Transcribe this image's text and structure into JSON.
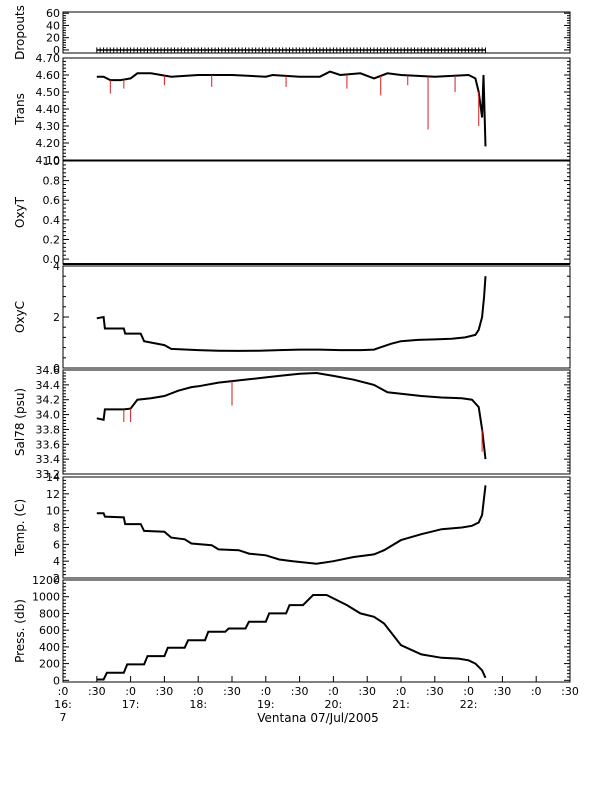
{
  "chart_data": {
    "type": "line",
    "title": "",
    "x_axis": {
      "tick_labels": [
        ":0",
        ":30",
        ":0",
        ":30",
        ":0",
        ":30",
        ":0",
        ":30",
        ":0",
        ":30",
        ":0",
        ":30",
        ":0",
        ":30",
        ":0",
        ":30"
      ],
      "hour_labels": [
        "16:",
        "17:",
        "18:",
        "19:",
        "20:",
        "21:",
        "22:"
      ],
      "day_label": "7",
      "xlabel": "Ventana 07/Jul/2005",
      "range_hours": [
        16.0,
        23.5
      ]
    },
    "panels": [
      {
        "ylabel": "Dropouts",
        "ylim": [
          -5,
          62
        ],
        "ticks": [
          0,
          20,
          40,
          60
        ],
        "tick_labels": [
          "0",
          "20",
          "40",
          "60"
        ],
        "series": [
          {
            "x": [
              16.5,
              22.25
            ],
            "y": [
              0,
              0
            ],
            "style": "plus-markers"
          }
        ]
      },
      {
        "ylabel": "Trans",
        "ylim": [
          4.1,
          4.7
        ],
        "ticks": [
          4.1,
          4.2,
          4.3,
          4.4,
          4.5,
          4.6,
          4.7
        ],
        "tick_labels": [
          "4.10",
          "4.20",
          "4.30",
          "4.40",
          "4.50",
          "4.60",
          "4.70"
        ],
        "series": [
          {
            "x": [
              16.5,
              16.6,
              16.7,
              16.85,
              17.0,
              17.1,
              17.3,
              17.6,
              18.0,
              18.5,
              19.0,
              19.1,
              19.5,
              19.8,
              19.95,
              20.1,
              20.4,
              20.6,
              20.8,
              21.0,
              21.5,
              22.0,
              22.1,
              22.15,
              22.2,
              22.22,
              22.25
            ],
            "y": [
              4.59,
              4.59,
              4.57,
              4.57,
              4.58,
              4.61,
              4.61,
              4.59,
              4.6,
              4.6,
              4.59,
              4.6,
              4.59,
              4.59,
              4.62,
              4.6,
              4.61,
              4.58,
              4.61,
              4.6,
              4.59,
              4.6,
              4.58,
              4.5,
              4.35,
              4.6,
              4.18
            ]
          },
          {
            "x": [
              16.7,
              16.9,
              17.5,
              18.2,
              19.3,
              20.2,
              20.7,
              21.1,
              21.4,
              21.8,
              22.15
            ],
            "y": [
              4.49,
              4.52,
              4.54,
              4.53,
              4.53,
              4.52,
              4.48,
              4.54,
              4.28,
              4.5,
              4.3
            ],
            "style": "red-spikes"
          }
        ]
      },
      {
        "ylabel": "OxyT",
        "ylim": [
          -0.05,
          1.0
        ],
        "ticks": [
          0.0,
          0.2,
          0.4,
          0.6,
          0.8,
          1.0
        ],
        "tick_labels": [
          "0.0",
          "0.2",
          "0.4",
          "0.6",
          "0.8",
          "1.0"
        ],
        "series": [
          {
            "x": [
              16.0,
              23.5
            ],
            "y": [
              -0.05,
              -0.05
            ]
          }
        ]
      },
      {
        "ylabel": "OxyC",
        "ylim": [
          0,
          4
        ],
        "ticks": [
          0,
          2,
          4
        ],
        "tick_labels": [
          "0",
          "2",
          "4"
        ],
        "series": [
          {
            "x": [
              16.5,
              16.6,
              16.62,
              16.9,
              16.92,
              17.15,
              17.2,
              17.5,
              17.6,
              18.0,
              18.3,
              18.6,
              18.9,
              19.2,
              19.5,
              19.8,
              20.1,
              20.4,
              20.6,
              20.85,
              21.0,
              21.25,
              21.5,
              21.75,
              21.95,
              22.1,
              22.15,
              22.2,
              22.23,
              22.25
            ],
            "y": [
              1.95,
              2.0,
              1.55,
              1.55,
              1.35,
              1.35,
              1.05,
              0.9,
              0.75,
              0.7,
              0.68,
              0.67,
              0.68,
              0.7,
              0.72,
              0.72,
              0.7,
              0.7,
              0.72,
              0.95,
              1.05,
              1.1,
              1.12,
              1.15,
              1.2,
              1.3,
              1.5,
              2.0,
              2.8,
              3.6
            ]
          }
        ]
      },
      {
        "ylabel": "Sal78 (psu)",
        "ylim": [
          33.2,
          34.6
        ],
        "ticks": [
          33.2,
          33.4,
          33.6,
          33.8,
          34.0,
          34.2,
          34.4,
          34.6
        ],
        "tick_labels": [
          "33.2",
          "33.4",
          "33.6",
          "33.8",
          "34.0",
          "34.2",
          "34.4",
          "34.6"
        ],
        "series": [
          {
            "x": [
              16.5,
              16.6,
              16.62,
              16.9,
              17.0,
              17.1,
              17.3,
              17.5,
              17.7,
              17.9,
              18.0,
              18.3,
              18.5,
              18.8,
              19.0,
              19.2,
              19.5,
              19.75,
              20.0,
              20.3,
              20.6,
              20.8,
              21.0,
              21.3,
              21.6,
              21.9,
              22.05,
              22.15,
              22.2,
              22.25
            ],
            "y": [
              33.95,
              33.93,
              34.07,
              34.07,
              34.08,
              34.2,
              34.22,
              34.25,
              34.32,
              34.37,
              34.38,
              34.43,
              34.45,
              34.48,
              34.5,
              34.52,
              34.55,
              34.56,
              34.52,
              34.47,
              34.4,
              34.3,
              34.28,
              34.25,
              34.23,
              34.22,
              34.2,
              34.1,
              33.8,
              33.4
            ]
          },
          {
            "x": [
              16.9,
              17.0,
              18.5,
              22.2
            ],
            "y": [
              33.9,
              33.9,
              34.12,
              33.5
            ],
            "style": "red-spikes"
          }
        ]
      },
      {
        "ylabel": "Temp. (C)",
        "ylim": [
          2,
          14
        ],
        "ticks": [
          2,
          4,
          6,
          8,
          10,
          12,
          14
        ],
        "tick_labels": [
          "2",
          "4",
          "6",
          "8",
          "10",
          "12",
          "14"
        ],
        "series": [
          {
            "x": [
              16.5,
              16.6,
              16.62,
              16.9,
              16.92,
              17.15,
              17.2,
              17.5,
              17.6,
              17.8,
              17.9,
              18.2,
              18.3,
              18.6,
              18.75,
              19.0,
              19.2,
              19.4,
              19.75,
              20.0,
              20.3,
              20.6,
              20.75,
              21.0,
              21.3,
              21.6,
              21.9,
              22.05,
              22.15,
              22.2,
              22.25
            ],
            "y": [
              9.7,
              9.7,
              9.3,
              9.2,
              8.4,
              8.4,
              7.6,
              7.5,
              6.8,
              6.6,
              6.1,
              5.9,
              5.4,
              5.3,
              4.9,
              4.7,
              4.2,
              4.0,
              3.7,
              4.0,
              4.5,
              4.8,
              5.3,
              6.5,
              7.2,
              7.8,
              8.0,
              8.2,
              8.6,
              9.5,
              13.0
            ]
          }
        ]
      },
      {
        "ylabel": "Press. (db)",
        "ylim": [
          -20,
          1200
        ],
        "ticks": [
          0,
          200,
          400,
          600,
          800,
          1000,
          1200
        ],
        "tick_labels": [
          "0",
          "200",
          "400",
          "600",
          "800",
          "1000",
          "1200"
        ],
        "series": [
          {
            "x": [
              16.5,
              16.6,
              16.65,
              16.9,
              16.95,
              17.2,
              17.25,
              17.5,
              17.55,
              17.8,
              17.85,
              18.1,
              18.15,
              18.4,
              18.45,
              18.7,
              18.75,
              19.0,
              19.05,
              19.3,
              19.35,
              19.55,
              19.7,
              19.9,
              20.0,
              20.2,
              20.4,
              20.6,
              20.75,
              21.0,
              21.3,
              21.6,
              21.85,
              22.0,
              22.1,
              22.2,
              22.25
            ],
            "y": [
              10,
              10,
              90,
              90,
              190,
              190,
              290,
              290,
              390,
              390,
              480,
              480,
              580,
              580,
              620,
              620,
              700,
              700,
              800,
              800,
              900,
              900,
              1020,
              1020,
              980,
              900,
              800,
              760,
              680,
              420,
              310,
              270,
              260,
              240,
              200,
              120,
              30
            ]
          }
        ]
      }
    ]
  }
}
